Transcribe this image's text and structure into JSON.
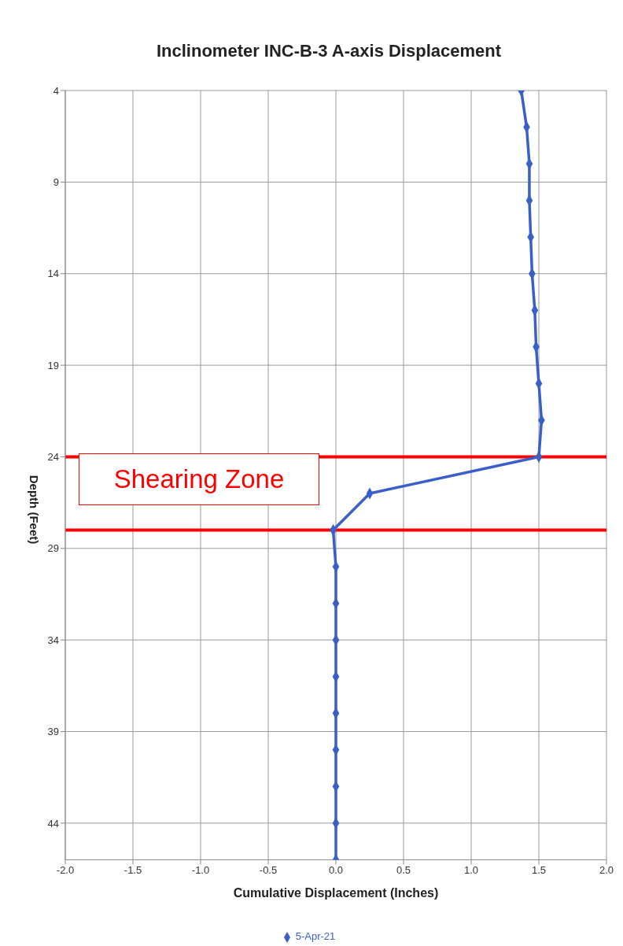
{
  "chart_data": {
    "type": "line",
    "title": "Inclinometer INC-B-3 A-axis Displacement",
    "xlabel": "Cumulative Displacement (Inches)",
    "ylabel": "Depth (Feet)",
    "series": [
      {
        "name": "5-Apr-21",
        "color": "#3a5fc8",
        "x": [
          1.37,
          1.41,
          1.43,
          1.43,
          1.44,
          1.45,
          1.47,
          1.48,
          1.5,
          1.52,
          1.5,
          0.25,
          -0.02,
          0,
          0,
          0,
          0,
          0,
          0,
          0,
          0,
          0
        ],
        "values": [
          4,
          6,
          8,
          10,
          12,
          14,
          16,
          18,
          20,
          22,
          24,
          26,
          28,
          30,
          32,
          34,
          36,
          38,
          40,
          42,
          44,
          46
        ]
      }
    ],
    "xlim": [
      -2,
      2
    ],
    "xticks": [
      {
        "value": -2,
        "label": "-2.0"
      },
      {
        "value": -1.5,
        "label": "-1.5"
      },
      {
        "value": -1,
        "label": "-1.0"
      },
      {
        "value": -0.5,
        "label": "-0.5"
      },
      {
        "value": 0,
        "label": "0.0"
      },
      {
        "value": 0.5,
        "label": "0.5"
      },
      {
        "value": 1,
        "label": "1.0"
      },
      {
        "value": 1.5,
        "label": "1.5"
      },
      {
        "value": 2,
        "label": "2.0"
      }
    ],
    "ylim": [
      46,
      4
    ],
    "yticks": [
      4,
      9,
      14,
      19,
      24,
      29,
      34,
      39,
      44
    ],
    "ref_lines": [
      {
        "axis": "y",
        "value": 24,
        "label": null,
        "color": "#ff0000"
      },
      {
        "axis": "y",
        "value": 28,
        "label": null,
        "color": "#ff0000"
      }
    ],
    "annotations": [
      "Shearing Zone"
    ],
    "grid": true,
    "legend": "bottom",
    "marker": "diamond",
    "line_style": "solid"
  }
}
